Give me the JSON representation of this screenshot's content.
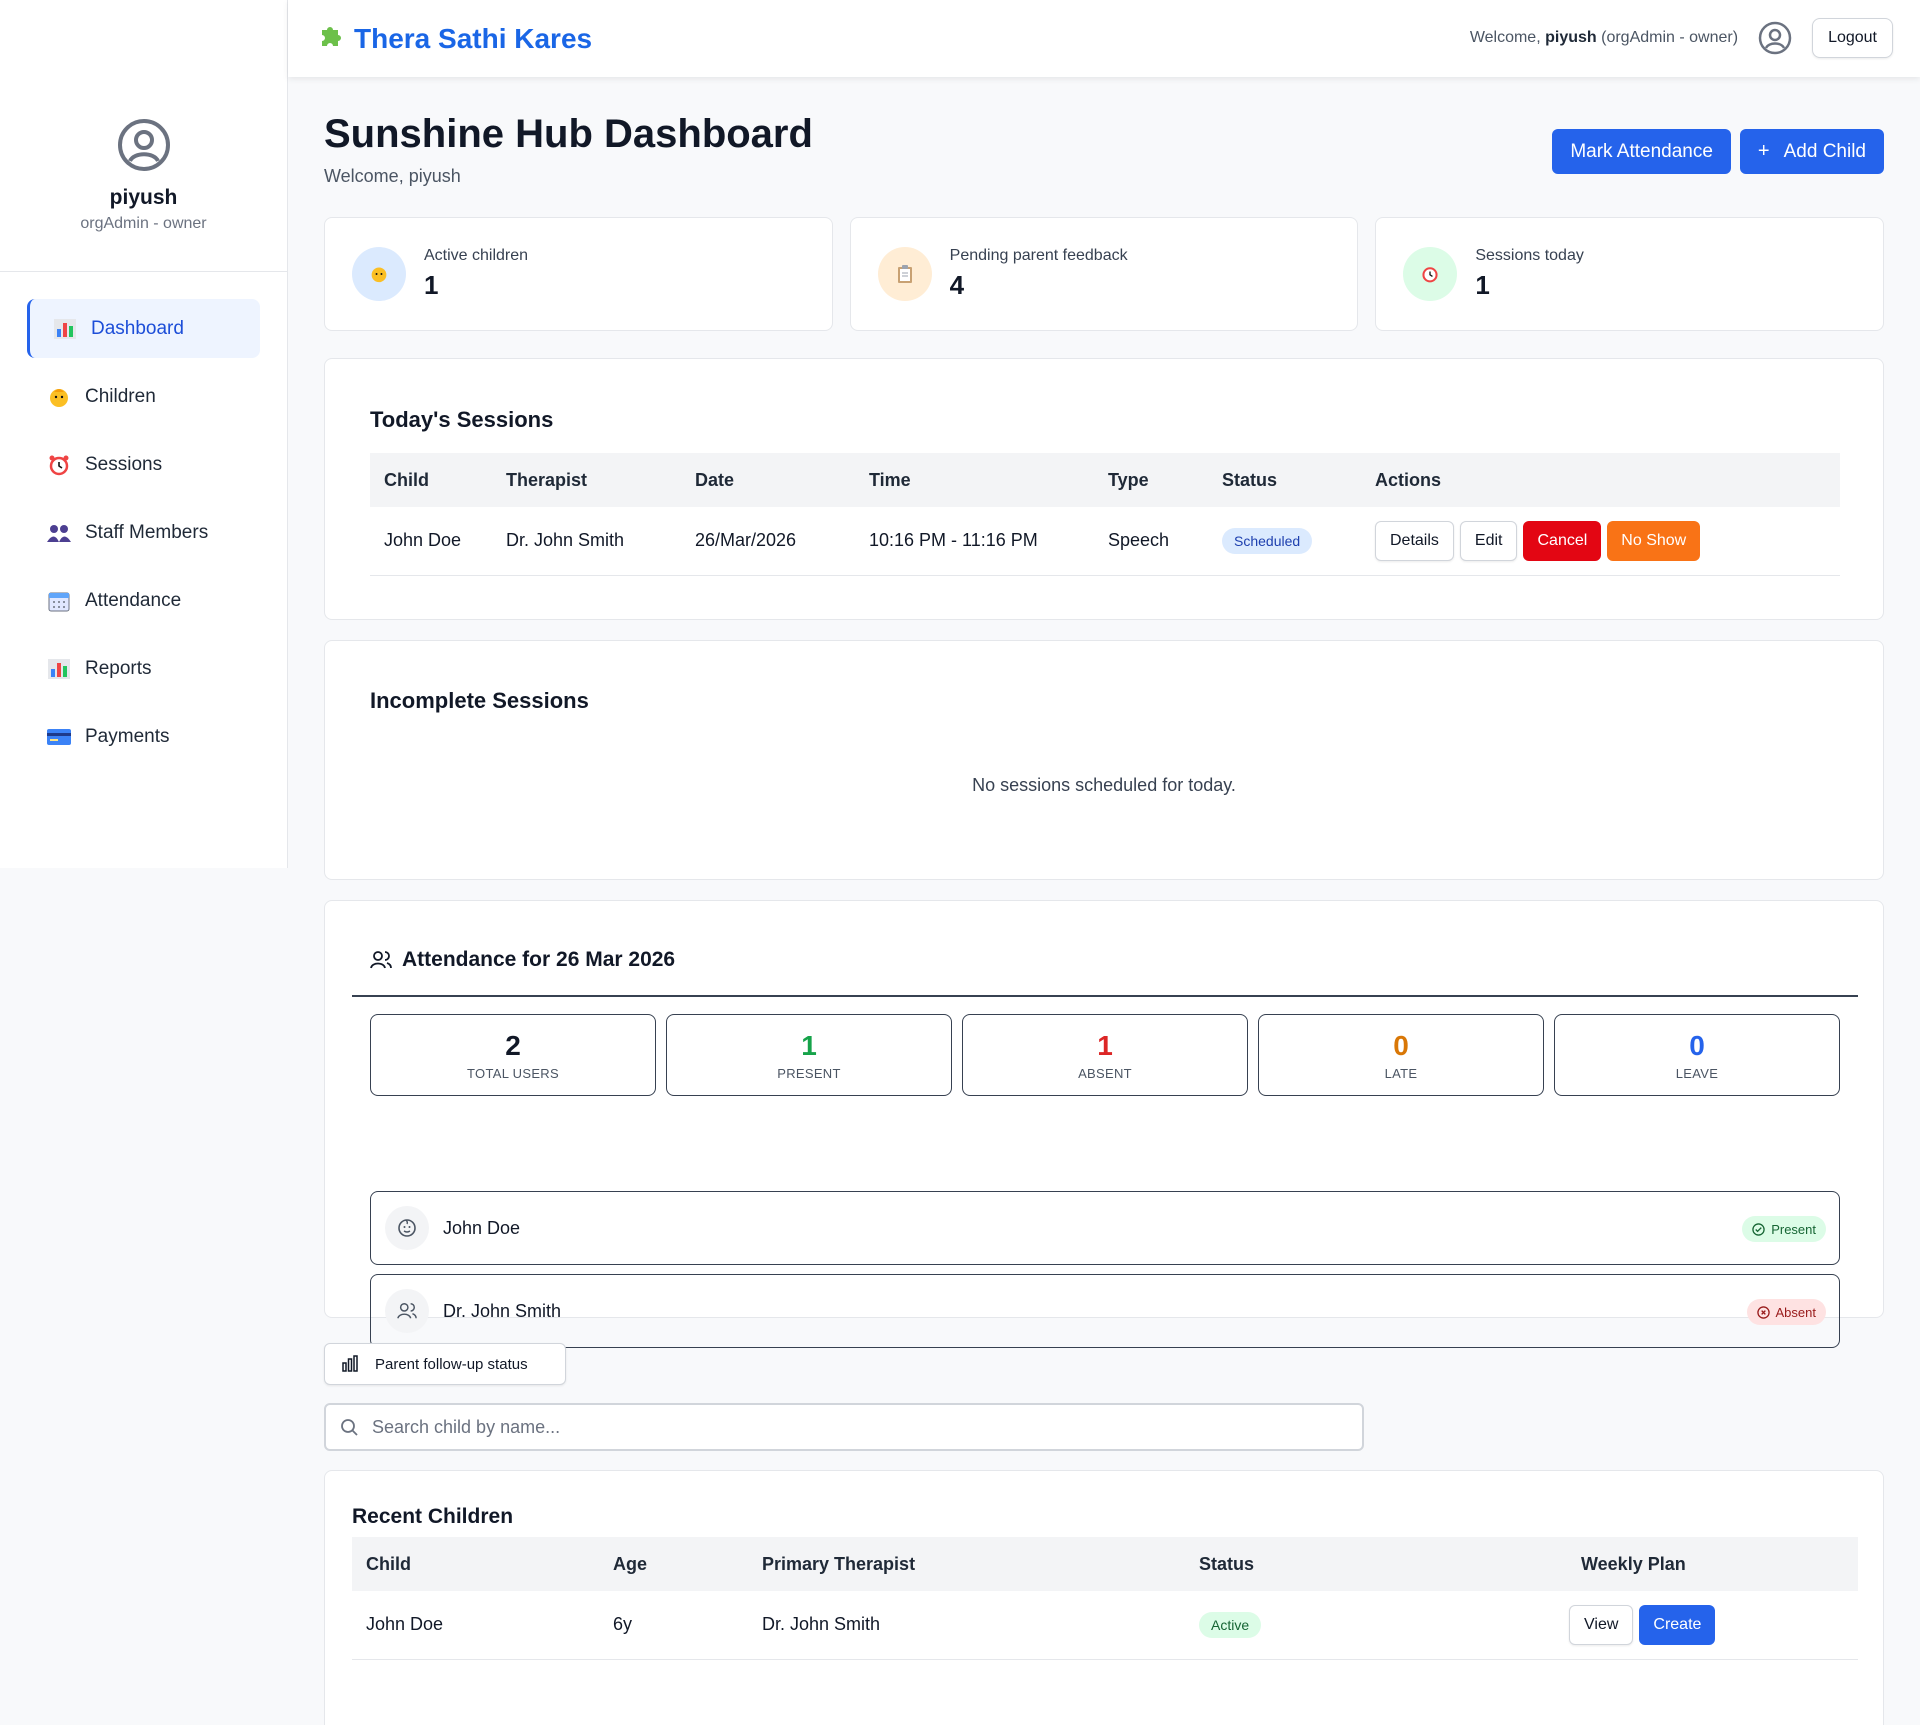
{
  "app": {
    "name": "Thera Sathi Kares"
  },
  "topbar": {
    "welcome_prefix": "Welcome,",
    "user": "piyush",
    "role_text": "(orgAdmin - owner)",
    "logout": "Logout"
  },
  "sidebar": {
    "user_name": "piyush",
    "user_role": "orgAdmin - owner",
    "items": [
      {
        "label": "Dashboard",
        "icon": "bar-chart-icon",
        "active": true
      },
      {
        "label": "Children",
        "icon": "baby-icon"
      },
      {
        "label": "Sessions",
        "icon": "alarm-clock-icon"
      },
      {
        "label": "Staff Members",
        "icon": "people-icon"
      },
      {
        "label": "Attendance",
        "icon": "calendar-icon"
      },
      {
        "label": "Reports",
        "icon": "bar-chart-icon"
      },
      {
        "label": "Payments",
        "icon": "credit-card-icon"
      }
    ]
  },
  "page": {
    "title": "Sunshine Hub Dashboard",
    "subtitle": "Welcome, piyush",
    "mark_attendance": "Mark Attendance",
    "add_child": "Add Child",
    "add_child_icon": "+"
  },
  "stats": [
    {
      "label": "Active children",
      "value": "1",
      "icon": "baby-icon",
      "bg": "#dbeafe"
    },
    {
      "label": "Pending parent feedback",
      "value": "4",
      "icon": "clipboard-icon",
      "bg": "#ffedd5"
    },
    {
      "label": "Sessions today",
      "value": "1",
      "icon": "alarm-clock-icon",
      "bg": "#dcfce7"
    }
  ],
  "todays_sessions": {
    "title": "Today's Sessions",
    "columns": [
      "Child",
      "Therapist",
      "Date",
      "Time",
      "Type",
      "Status",
      "Actions"
    ],
    "rows": [
      {
        "child": "John Doe",
        "therapist": "Dr. John Smith",
        "date": "26/Mar/2026",
        "time": "10:16 PM - 11:16 PM",
        "type": "Speech",
        "status": "Scheduled"
      }
    ],
    "actions": {
      "details": "Details",
      "edit": "Edit",
      "cancel": "Cancel",
      "no_show": "No Show"
    }
  },
  "incomplete_sessions": {
    "title": "Incomplete Sessions",
    "empty": "No sessions scheduled for today."
  },
  "attendance": {
    "title": "Attendance for 26 Mar 2026",
    "stats": [
      {
        "value": "2",
        "label": "TOTAL USERS",
        "color": "#111827"
      },
      {
        "value": "1",
        "label": "PRESENT",
        "color": "#16a34a"
      },
      {
        "value": "1",
        "label": "ABSENT",
        "color": "#dc2626"
      },
      {
        "value": "0",
        "label": "LATE",
        "color": "#d97706"
      },
      {
        "value": "0",
        "label": "LEAVE",
        "color": "#2563eb"
      }
    ],
    "people": [
      {
        "name": "John Doe",
        "status": "Present",
        "icon": "baby-face-icon"
      },
      {
        "name": "Dr. John Smith",
        "status": "Absent",
        "icon": "users-icon"
      }
    ]
  },
  "followup": {
    "label": "Parent follow-up status"
  },
  "search": {
    "placeholder": "Search child by name..."
  },
  "recent_children": {
    "title": "Recent Children",
    "columns": [
      "Child",
      "Age",
      "Primary Therapist",
      "Status",
      "Weekly Plan"
    ],
    "rows": [
      {
        "child": "John Doe",
        "age": "6y",
        "therapist": "Dr. John Smith",
        "status": "Active"
      }
    ],
    "view": "View",
    "create": "Create"
  }
}
